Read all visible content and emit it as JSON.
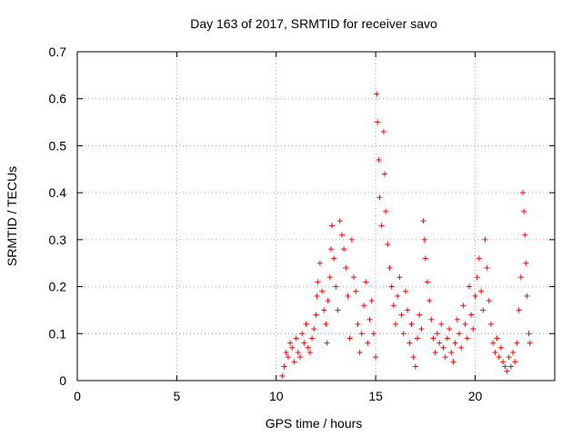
{
  "chart_data": {
    "type": "scatter",
    "title": "Day 163 of 2017, SRMTID for receiver savo",
    "xlabel": "GPS time / hours",
    "ylabel": "SRMTID / TECUs",
    "xlim": [
      0,
      24
    ],
    "ylim": [
      0,
      0.7
    ],
    "xticks": [
      0,
      5,
      10,
      15,
      20
    ],
    "xtick_labels": [
      "0",
      "5",
      "10",
      "15",
      "20"
    ],
    "yticks": [
      0,
      0.1,
      0.2,
      0.3,
      0.4,
      0.5,
      0.6,
      0.7
    ],
    "ytick_labels": [
      "0",
      "0.1",
      "0.2",
      "0.3",
      "0.4",
      "0.5",
      "0.6",
      "0.7"
    ],
    "grid": true,
    "marker": "+",
    "color": "#ff0000",
    "series": [
      {
        "name": "SRMTID",
        "points": [
          [
            10.3,
            0.01
          ],
          [
            10.4,
            0.03
          ],
          [
            10.5,
            0.06
          ],
          [
            10.6,
            0.05
          ],
          [
            10.7,
            0.08
          ],
          [
            10.8,
            0.07
          ],
          [
            10.9,
            0.04
          ],
          [
            11.0,
            0.09
          ],
          [
            11.1,
            0.06
          ],
          [
            11.2,
            0.05
          ],
          [
            11.3,
            0.1
          ],
          [
            11.4,
            0.08
          ],
          [
            11.5,
            0.12
          ],
          [
            11.6,
            0.07
          ],
          [
            11.7,
            0.06
          ],
          [
            11.8,
            0.09
          ],
          [
            11.9,
            0.11
          ],
          [
            12.0,
            0.14
          ],
          [
            12.05,
            0.18
          ],
          [
            12.1,
            0.21
          ],
          [
            12.2,
            0.25
          ],
          [
            12.3,
            0.19
          ],
          [
            12.4,
            0.15
          ],
          [
            12.5,
            0.12
          ],
          [
            12.55,
            0.08
          ],
          [
            12.6,
            0.17
          ],
          [
            12.7,
            0.22
          ],
          [
            12.75,
            0.28
          ],
          [
            12.8,
            0.33
          ],
          [
            12.9,
            0.26
          ],
          [
            13.0,
            0.2
          ],
          [
            13.1,
            0.15
          ],
          [
            13.2,
            0.34
          ],
          [
            13.3,
            0.31
          ],
          [
            13.4,
            0.28
          ],
          [
            13.5,
            0.24
          ],
          [
            13.6,
            0.18
          ],
          [
            13.7,
            0.09
          ],
          [
            13.8,
            0.3
          ],
          [
            13.9,
            0.22
          ],
          [
            14.0,
            0.19
          ],
          [
            14.1,
            0.12
          ],
          [
            14.2,
            0.06
          ],
          [
            14.3,
            0.1
          ],
          [
            14.4,
            0.16
          ],
          [
            14.5,
            0.21
          ],
          [
            14.6,
            0.08
          ],
          [
            14.7,
            0.13
          ],
          [
            14.8,
            0.17
          ],
          [
            14.9,
            0.1
          ],
          [
            15.0,
            0.05
          ],
          [
            15.05,
            0.61
          ],
          [
            15.1,
            0.55
          ],
          [
            15.15,
            0.47
          ],
          [
            15.2,
            0.39
          ],
          [
            15.3,
            0.33
          ],
          [
            15.4,
            0.53
          ],
          [
            15.45,
            0.44
          ],
          [
            15.5,
            0.36
          ],
          [
            15.6,
            0.29
          ],
          [
            15.7,
            0.24
          ],
          [
            15.8,
            0.2
          ],
          [
            15.9,
            0.16
          ],
          [
            16.0,
            0.12
          ],
          [
            16.1,
            0.18
          ],
          [
            16.2,
            0.22
          ],
          [
            16.3,
            0.14
          ],
          [
            16.4,
            0.1
          ],
          [
            16.5,
            0.19
          ],
          [
            16.6,
            0.15
          ],
          [
            16.7,
            0.08
          ],
          [
            16.8,
            0.12
          ],
          [
            16.9,
            0.05
          ],
          [
            17.0,
            0.03
          ],
          [
            17.1,
            0.09
          ],
          [
            17.2,
            0.14
          ],
          [
            17.3,
            0.11
          ],
          [
            17.4,
            0.34
          ],
          [
            17.45,
            0.3
          ],
          [
            17.5,
            0.26
          ],
          [
            17.6,
            0.21
          ],
          [
            17.7,
            0.17
          ],
          [
            17.8,
            0.13
          ],
          [
            17.9,
            0.09
          ],
          [
            18.0,
            0.06
          ],
          [
            18.1,
            0.1
          ],
          [
            18.2,
            0.08
          ],
          [
            18.3,
            0.12
          ],
          [
            18.4,
            0.07
          ],
          [
            18.5,
            0.05
          ],
          [
            18.6,
            0.09
          ],
          [
            18.7,
            0.11
          ],
          [
            18.8,
            0.06
          ],
          [
            18.9,
            0.04
          ],
          [
            19.0,
            0.08
          ],
          [
            19.1,
            0.13
          ],
          [
            19.2,
            0.1
          ],
          [
            19.3,
            0.07
          ],
          [
            19.4,
            0.16
          ],
          [
            19.5,
            0.12
          ],
          [
            19.6,
            0.09
          ],
          [
            19.7,
            0.2
          ],
          [
            19.8,
            0.14
          ],
          [
            19.9,
            0.11
          ],
          [
            20.0,
            0.18
          ],
          [
            20.1,
            0.22
          ],
          [
            20.2,
            0.26
          ],
          [
            20.3,
            0.19
          ],
          [
            20.4,
            0.15
          ],
          [
            20.5,
            0.3
          ],
          [
            20.6,
            0.24
          ],
          [
            20.7,
            0.17
          ],
          [
            20.8,
            0.12
          ],
          [
            20.9,
            0.08
          ],
          [
            21.0,
            0.06
          ],
          [
            21.1,
            0.09
          ],
          [
            21.2,
            0.05
          ],
          [
            21.3,
            0.07
          ],
          [
            21.4,
            0.04
          ],
          [
            21.5,
            0.03
          ],
          [
            21.6,
            0.02
          ],
          [
            21.7,
            0.05
          ],
          [
            21.8,
            0.03
          ],
          [
            21.9,
            0.06
          ],
          [
            22.0,
            0.04
          ],
          [
            22.1,
            0.08
          ],
          [
            22.2,
            0.15
          ],
          [
            22.3,
            0.22
          ],
          [
            22.4,
            0.4
          ],
          [
            22.45,
            0.36
          ],
          [
            22.5,
            0.31
          ],
          [
            22.55,
            0.25
          ],
          [
            22.6,
            0.18
          ],
          [
            22.7,
            0.1
          ],
          [
            22.75,
            0.08
          ]
        ]
      }
    ]
  }
}
